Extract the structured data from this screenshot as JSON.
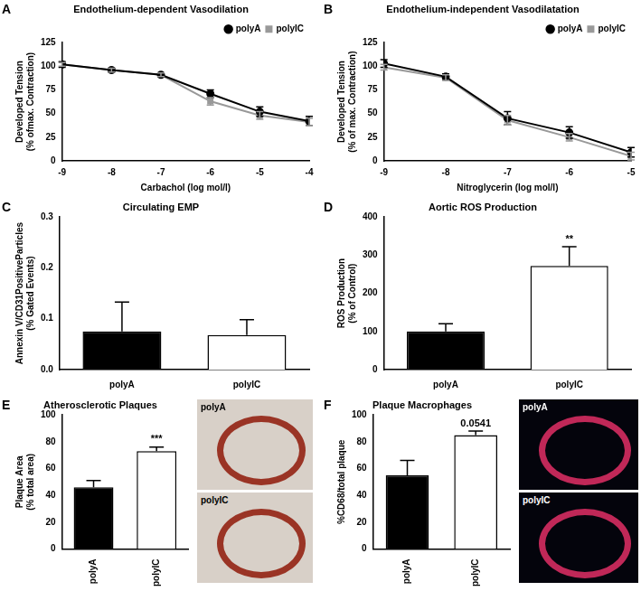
{
  "chart_data": [
    {
      "panel": "A",
      "type": "line",
      "title": "Endothelium-dependent Vasodilation",
      "x_label": "Carbachol (log mol/l)",
      "y_label": [
        "Developed Tension",
        "(% ofmax. Contraction)"
      ],
      "x": [
        -9,
        -8,
        -7,
        -6,
        -5,
        -4
      ],
      "series": [
        {
          "name": "polyA",
          "color": "#000000",
          "marker": "circle",
          "values": [
            102,
            96,
            91,
            71,
            52,
            42
          ],
          "errors": [
            3,
            2,
            2,
            4,
            5,
            5
          ]
        },
        {
          "name": "polyIC",
          "color": "#999999",
          "marker": "square",
          "values": [
            102,
            96,
            91,
            63,
            48,
            41
          ],
          "errors": [
            2,
            2,
            2,
            4,
            4,
            4
          ]
        }
      ],
      "xlim": [
        -9,
        -4
      ],
      "xticks": [
        -9,
        -8,
        -7,
        -6,
        -5,
        -4
      ],
      "ylim": [
        0,
        125
      ],
      "yticks": [
        0,
        25,
        50,
        75,
        100,
        125
      ],
      "legend": "top-right"
    },
    {
      "panel": "B",
      "type": "line",
      "title": "Endothelium-independent Vasodilatation",
      "x_label": "Nitroglycerin (log mol/l)",
      "y_label": [
        "Developed Tension",
        "(% of max. Contraction)"
      ],
      "x": [
        -9,
        -8,
        -7,
        -6,
        -5
      ],
      "series": [
        {
          "name": "polyA",
          "color": "#000000",
          "marker": "circle",
          "values": [
            103,
            89,
            45,
            30,
            9
          ],
          "errors": [
            4,
            3,
            7,
            6,
            5
          ]
        },
        {
          "name": "polyIC",
          "color": "#999999",
          "marker": "square",
          "values": [
            99,
            88,
            43,
            25,
            5
          ],
          "errors": [
            3,
            3,
            5,
            4,
            4
          ]
        }
      ],
      "xlim": [
        -9,
        -5
      ],
      "xticks": [
        -9,
        -8,
        -7,
        -6,
        -5
      ],
      "ylim": [
        0,
        125
      ],
      "yticks": [
        0,
        25,
        50,
        75,
        100,
        125
      ],
      "legend": "top-right"
    },
    {
      "panel": "C",
      "type": "bar",
      "title": "Circulating EMP",
      "y_label": [
        "Annexin V/CD31PositiveParticles",
        "(% Gated Events)"
      ],
      "categories": [
        "polyA",
        "polyIC"
      ],
      "values": [
        0.075,
        0.068
      ],
      "errors": [
        0.058,
        0.03
      ],
      "colors": [
        "#000000",
        "#ffffff"
      ],
      "ylim": [
        0,
        0.3
      ],
      "yticks": [
        {
          "value": 0,
          "label": "0.0"
        },
        0.1,
        0.2,
        0.3
      ]
    },
    {
      "panel": "D",
      "type": "bar",
      "title": "Aortic ROS Production",
      "y_label": [
        "ROS Production",
        "(% of Control)"
      ],
      "categories": [
        "polyA",
        "polyIC"
      ],
      "values": [
        100,
        272
      ],
      "errors": [
        20,
        50
      ],
      "annotations": [
        null,
        "**"
      ],
      "colors": [
        "#000000",
        "#ffffff"
      ],
      "ylim": [
        0,
        400
      ],
      "yticks": [
        0,
        100,
        200,
        300,
        400
      ]
    },
    {
      "panel": "E",
      "type": "bar",
      "title": "Atherosclerotic Plaques",
      "y_label": [
        "Plaque Area",
        "(% total area)"
      ],
      "categories": [
        "polyA",
        "polyIC"
      ],
      "values": [
        46,
        73
      ],
      "errors": [
        5,
        3
      ],
      "annotations": [
        null,
        "***"
      ],
      "colors": [
        "#000000",
        "#ffffff"
      ],
      "ylim": [
        0,
        100
      ],
      "yticks": [
        0,
        20,
        40,
        60,
        80,
        100
      ],
      "images": [
        "polyA",
        "polyIC"
      ]
    },
    {
      "panel": "F",
      "type": "bar",
      "title": "Plaque Macrophages",
      "y_label": [
        "%CD68/total plaque"
      ],
      "categories": [
        "polyA",
        "polyIC"
      ],
      "values": [
        55,
        85
      ],
      "errors": [
        11,
        3
      ],
      "annotations": [
        null,
        "0.0541"
      ],
      "colors": [
        "#000000",
        "#ffffff"
      ],
      "ylim": [
        0,
        100
      ],
      "yticks": [
        0,
        20,
        40,
        60,
        80,
        100
      ],
      "images": [
        "polyA",
        "polyIC"
      ]
    }
  ]
}
